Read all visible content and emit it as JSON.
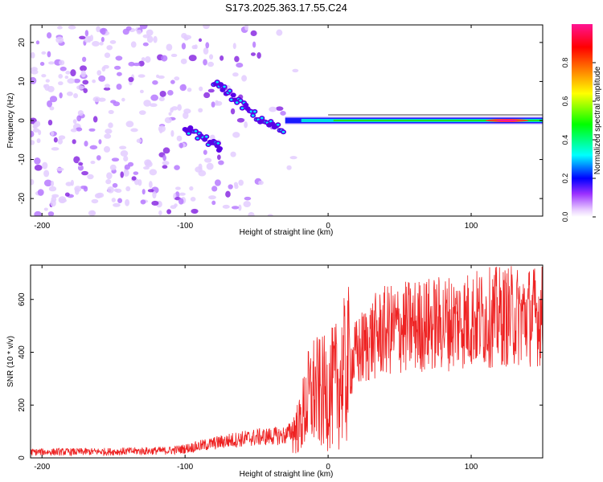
{
  "title": "S173.2025.363.17.55.C24",
  "chart_data": [
    {
      "type": "heatmap",
      "xlabel": "Height of straight line (km)",
      "ylabel": "Frequency (Hz)",
      "xlim": [
        -208,
        150
      ],
      "ylim": [
        -24.5,
        24.5
      ],
      "xticks": [
        -200,
        -100,
        0,
        100
      ],
      "yticks": [
        -20,
        -10,
        0,
        10,
        20
      ],
      "colorbar": {
        "label": "Normalized spectral amplitude",
        "range": [
          0,
          1
        ],
        "ticks": [
          0.0,
          0.2,
          0.4,
          0.6,
          0.8
        ],
        "tick_labels": [
          "0.0",
          "0.2",
          "0.4",
          "0.6",
          "0.8"
        ],
        "colors": [
          "#ffffff",
          "#e6c8ff",
          "#9b30ff",
          "#0000ff",
          "#00ffff",
          "#00ff00",
          "#ffff00",
          "#ff8000",
          "#ff0000",
          "#ff1493"
        ]
      },
      "series": [
        {
          "name": "noise floor (scattered, low amplitude)",
          "x_range": [
            -208,
            -20
          ],
          "freq_range": [
            -24.5,
            24.5
          ],
          "amplitude": 0.1
        },
        {
          "name": "descending trace segment A",
          "x": [
            -100,
            -90,
            -80,
            -75
          ],
          "freq": [
            -2,
            -4,
            -6,
            -7
          ],
          "amplitude": 0.25
        },
        {
          "name": "descending trace segment B",
          "x": [
            -80,
            -70,
            -60,
            -50,
            -40,
            -30
          ],
          "freq": [
            10,
            7,
            4,
            1,
            -1,
            -3
          ],
          "amplitude": 0.3
        },
        {
          "name": "steady carrier line",
          "x": [
            -30,
            0,
            50,
            100,
            150
          ],
          "freq": [
            0,
            0,
            0,
            0,
            0
          ],
          "amplitude": 0.5
        },
        {
          "name": "peak region",
          "x": [
            110,
            140
          ],
          "freq": [
            0,
            0
          ],
          "amplitude": 0.85
        }
      ]
    },
    {
      "type": "line",
      "xlabel": "Height of straight line (km)",
      "ylabel": "SNR (10 * v/v)",
      "xlim": [
        -208,
        150
      ],
      "ylim": [
        0,
        730
      ],
      "xticks": [
        -200,
        -100,
        0,
        100
      ],
      "yticks": [
        0,
        200,
        400,
        600
      ],
      "color": "#ee2222",
      "series": [
        {
          "name": "SNR",
          "x": [
            -208,
            -150,
            -110,
            -100,
            -90,
            -80,
            -70,
            -60,
            -50,
            -40,
            -30,
            -20,
            -15,
            -10,
            -5,
            0,
            5,
            10,
            20,
            30,
            40,
            60,
            80,
            100,
            120,
            150
          ],
          "values": [
            22,
            24,
            28,
            35,
            45,
            55,
            65,
            72,
            78,
            82,
            85,
            120,
            210,
            250,
            240,
            250,
            270,
            310,
            390,
            450,
            480,
            500,
            510,
            525,
            535,
            540
          ]
        }
      ]
    }
  ]
}
